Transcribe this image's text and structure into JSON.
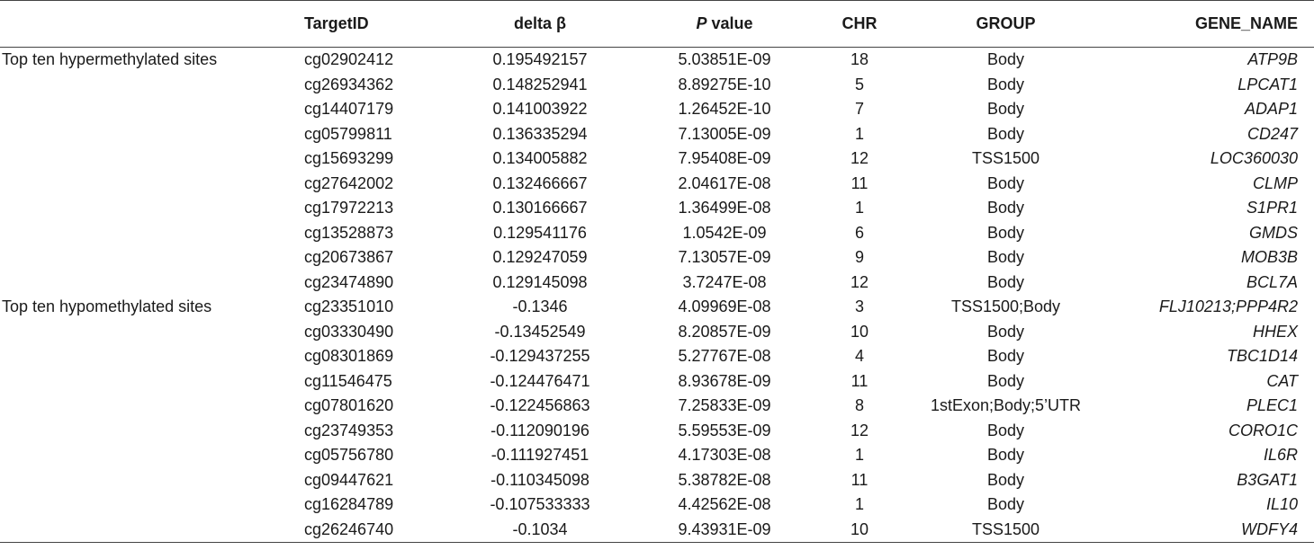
{
  "headers": {
    "blank": "",
    "target_id": "TargetID",
    "delta_beta": "delta β",
    "p_value_italic": "P",
    "p_value_rest": " value",
    "chr": "CHR",
    "group": "GROUP",
    "gene_name": "GENE_NAME"
  },
  "rows": [
    {
      "label": "Top ten hypermethylated sites",
      "target": "cg02902412",
      "delta": "0.195492157",
      "pval": "5.03851E-09",
      "chr": "18",
      "group": "Body",
      "gene": "ATP9B"
    },
    {
      "label": "",
      "target": "cg26934362",
      "delta": "0.148252941",
      "pval": "8.89275E-10",
      "chr": "5",
      "group": "Body",
      "gene": "LPCAT1"
    },
    {
      "label": "",
      "target": "cg14407179",
      "delta": "0.141003922",
      "pval": "1.26452E-10",
      "chr": "7",
      "group": "Body",
      "gene": "ADAP1"
    },
    {
      "label": "",
      "target": "cg05799811",
      "delta": "0.136335294",
      "pval": "7.13005E-09",
      "chr": "1",
      "group": "Body",
      "gene": "CD247"
    },
    {
      "label": "",
      "target": "cg15693299",
      "delta": "0.134005882",
      "pval": "7.95408E-09",
      "chr": "12",
      "group": "TSS1500",
      "gene": "LOC360030"
    },
    {
      "label": "",
      "target": "cg27642002",
      "delta": "0.132466667",
      "pval": "2.04617E-08",
      "chr": "11",
      "group": "Body",
      "gene": "CLMP"
    },
    {
      "label": "",
      "target": "cg17972213",
      "delta": "0.130166667",
      "pval": "1.36499E-08",
      "chr": "1",
      "group": "Body",
      "gene": "S1PR1"
    },
    {
      "label": "",
      "target": "cg13528873",
      "delta": "0.129541176",
      "pval": "1.0542E-09",
      "chr": "6",
      "group": "Body",
      "gene": "GMDS"
    },
    {
      "label": "",
      "target": "cg20673867",
      "delta": "0.129247059",
      "pval": "7.13057E-09",
      "chr": "9",
      "group": "Body",
      "gene": "MOB3B"
    },
    {
      "label": "",
      "target": "cg23474890",
      "delta": "0.129145098",
      "pval": "3.7247E-08",
      "chr": "12",
      "group": "Body",
      "gene": "BCL7A"
    },
    {
      "label": "Top ten hypomethylated sites",
      "target": "cg23351010",
      "delta": "-0.1346",
      "pval": "4.09969E-08",
      "chr": "3",
      "group": "TSS1500;Body",
      "gene": "FLJ10213;PPP4R2"
    },
    {
      "label": "",
      "target": "cg03330490",
      "delta": "-0.13452549",
      "pval": "8.20857E-09",
      "chr": "10",
      "group": "Body",
      "gene": "HHEX"
    },
    {
      "label": "",
      "target": "cg08301869",
      "delta": "-0.129437255",
      "pval": "5.27767E-08",
      "chr": "4",
      "group": "Body",
      "gene": "TBC1D14"
    },
    {
      "label": "",
      "target": "cg11546475",
      "delta": "-0.124476471",
      "pval": "8.93678E-09",
      "chr": "11",
      "group": "Body",
      "gene": "CAT"
    },
    {
      "label": "",
      "target": "cg07801620",
      "delta": "-0.122456863",
      "pval": "7.25833E-09",
      "chr": "8",
      "group": "1stExon;Body;5’UTR",
      "gene": "PLEC1"
    },
    {
      "label": "",
      "target": "cg23749353",
      "delta": "-0.112090196",
      "pval": "5.59553E-09",
      "chr": "12",
      "group": "Body",
      "gene": "CORO1C"
    },
    {
      "label": "",
      "target": "cg05756780",
      "delta": "-0.111927451",
      "pval": "4.17303E-08",
      "chr": "1",
      "group": "Body",
      "gene": "IL6R"
    },
    {
      "label": "",
      "target": "cg09447621",
      "delta": "-0.110345098",
      "pval": "5.38782E-08",
      "chr": "11",
      "group": "Body",
      "gene": "B3GAT1"
    },
    {
      "label": "",
      "target": "cg16284789",
      "delta": "-0.107533333",
      "pval": "4.42562E-08",
      "chr": "1",
      "group": "Body",
      "gene": "IL10"
    },
    {
      "label": "",
      "target": "cg26246740",
      "delta": "-0.1034",
      "pval": "9.43931E-09",
      "chr": "10",
      "group": "TSS1500",
      "gene": "WDFY4"
    }
  ]
}
